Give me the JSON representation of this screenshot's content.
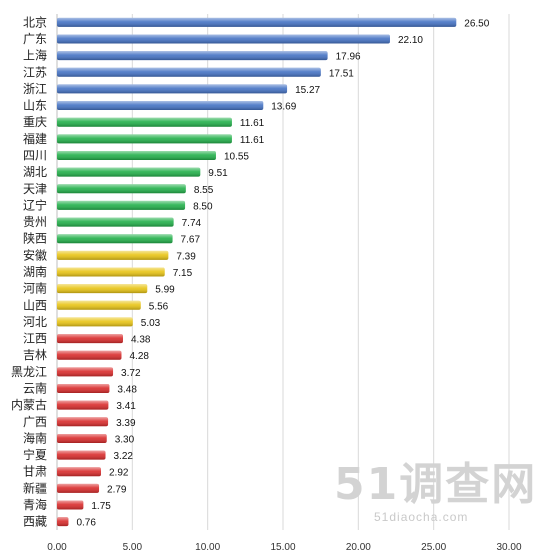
{
  "chart_data": {
    "type": "bar",
    "orientation": "horizontal",
    "title": "",
    "xlabel": "",
    "ylabel": "",
    "xlim": [
      0,
      30
    ],
    "x_ticks": [
      "0.00",
      "5.00",
      "10.00",
      "15.00",
      "20.00",
      "25.00",
      "30.00"
    ],
    "grid": true,
    "categories": [
      "北京",
      "广东",
      "上海",
      "江苏",
      "浙江",
      "山东",
      "重庆",
      "福建",
      "四川",
      "湖北",
      "天津",
      "辽宁",
      "贵州",
      "陕西",
      "安徽",
      "湖南",
      "河南",
      "山西",
      "河北",
      "江西",
      "吉林",
      "黑龙江",
      "云南",
      "内蒙古",
      "广西",
      "海南",
      "宁夏",
      "甘肃",
      "新疆",
      "青海",
      "西藏"
    ],
    "values": [
      26.5,
      22.1,
      17.96,
      17.51,
      15.27,
      13.69,
      11.61,
      11.61,
      10.55,
      9.51,
      8.55,
      8.5,
      7.74,
      7.67,
      7.39,
      7.15,
      5.99,
      5.56,
      5.03,
      4.38,
      4.28,
      3.72,
      3.48,
      3.41,
      3.39,
      3.3,
      3.22,
      2.92,
      2.79,
      1.75,
      0.76
    ],
    "value_labels": [
      "26.50",
      "22.10",
      "17.96",
      "17.51",
      "15.27",
      "13.69",
      "11.61",
      "11.61",
      "10.55",
      "9.51",
      "8.55",
      "8.50",
      "7.74",
      "7.67",
      "7.39",
      "7.15",
      "5.99",
      "5.56",
      "5.03",
      "4.38",
      "4.28",
      "3.72",
      "3.48",
      "3.41",
      "3.39",
      "3.30",
      "3.22",
      "2.92",
      "2.79",
      "1.75",
      "0.76"
    ],
    "bar_colors": [
      "#4472c4",
      "#4472c4",
      "#4472c4",
      "#4472c4",
      "#4472c4",
      "#4472c4",
      "#22b04a",
      "#22b04a",
      "#22b04a",
      "#22b04a",
      "#22b04a",
      "#22b04a",
      "#22b04a",
      "#22b04a",
      "#e8c414",
      "#e8c414",
      "#e8c414",
      "#e8c414",
      "#e8c414",
      "#d92b2b",
      "#d92b2b",
      "#d92b2b",
      "#d92b2b",
      "#d92b2b",
      "#d92b2b",
      "#d92b2b",
      "#d92b2b",
      "#d92b2b",
      "#d92b2b",
      "#d92b2b",
      "#d92b2b"
    ]
  },
  "watermark": {
    "logo_text": "51调查网",
    "url_text": "51diaocha.com"
  }
}
